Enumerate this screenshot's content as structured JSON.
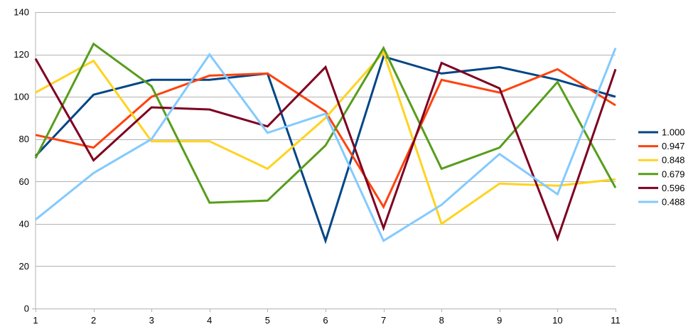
{
  "chart_data": {
    "type": "line",
    "title": "",
    "xlabel": "",
    "ylabel": "",
    "x": [
      1,
      2,
      3,
      4,
      5,
      6,
      7,
      8,
      9,
      10,
      11
    ],
    "xlim": [
      1,
      11
    ],
    "ylim": [
      0,
      140
    ],
    "yticks": [
      0,
      20,
      40,
      60,
      80,
      100,
      120,
      140
    ],
    "grid": true,
    "legend_position": "right",
    "series": [
      {
        "name": "1.000",
        "color": "#004586",
        "values": [
          72,
          101,
          108,
          108,
          111,
          32,
          119,
          111,
          114,
          108,
          100
        ]
      },
      {
        "name": "0.947",
        "color": "#ff420e",
        "values": [
          82,
          76,
          100,
          110,
          111,
          93,
          48,
          108,
          102,
          113,
          96
        ]
      },
      {
        "name": "0.848",
        "color": "#ffd320",
        "values": [
          102,
          117,
          79,
          79,
          66,
          90,
          121,
          40,
          59,
          58,
          61
        ]
      },
      {
        "name": "0.679",
        "color": "#579d1c",
        "values": [
          71,
          125,
          105,
          50,
          51,
          77,
          123,
          66,
          76,
          107,
          57
        ]
      },
      {
        "name": "0.596",
        "color": "#7e0021",
        "values": [
          118,
          70,
          95,
          94,
          86,
          114,
          38,
          116,
          104,
          33,
          113
        ]
      },
      {
        "name": "0.488",
        "color": "#83caff",
        "values": [
          42,
          64,
          80,
          120,
          83,
          92,
          32,
          49,
          73,
          54,
          123
        ]
      }
    ]
  }
}
